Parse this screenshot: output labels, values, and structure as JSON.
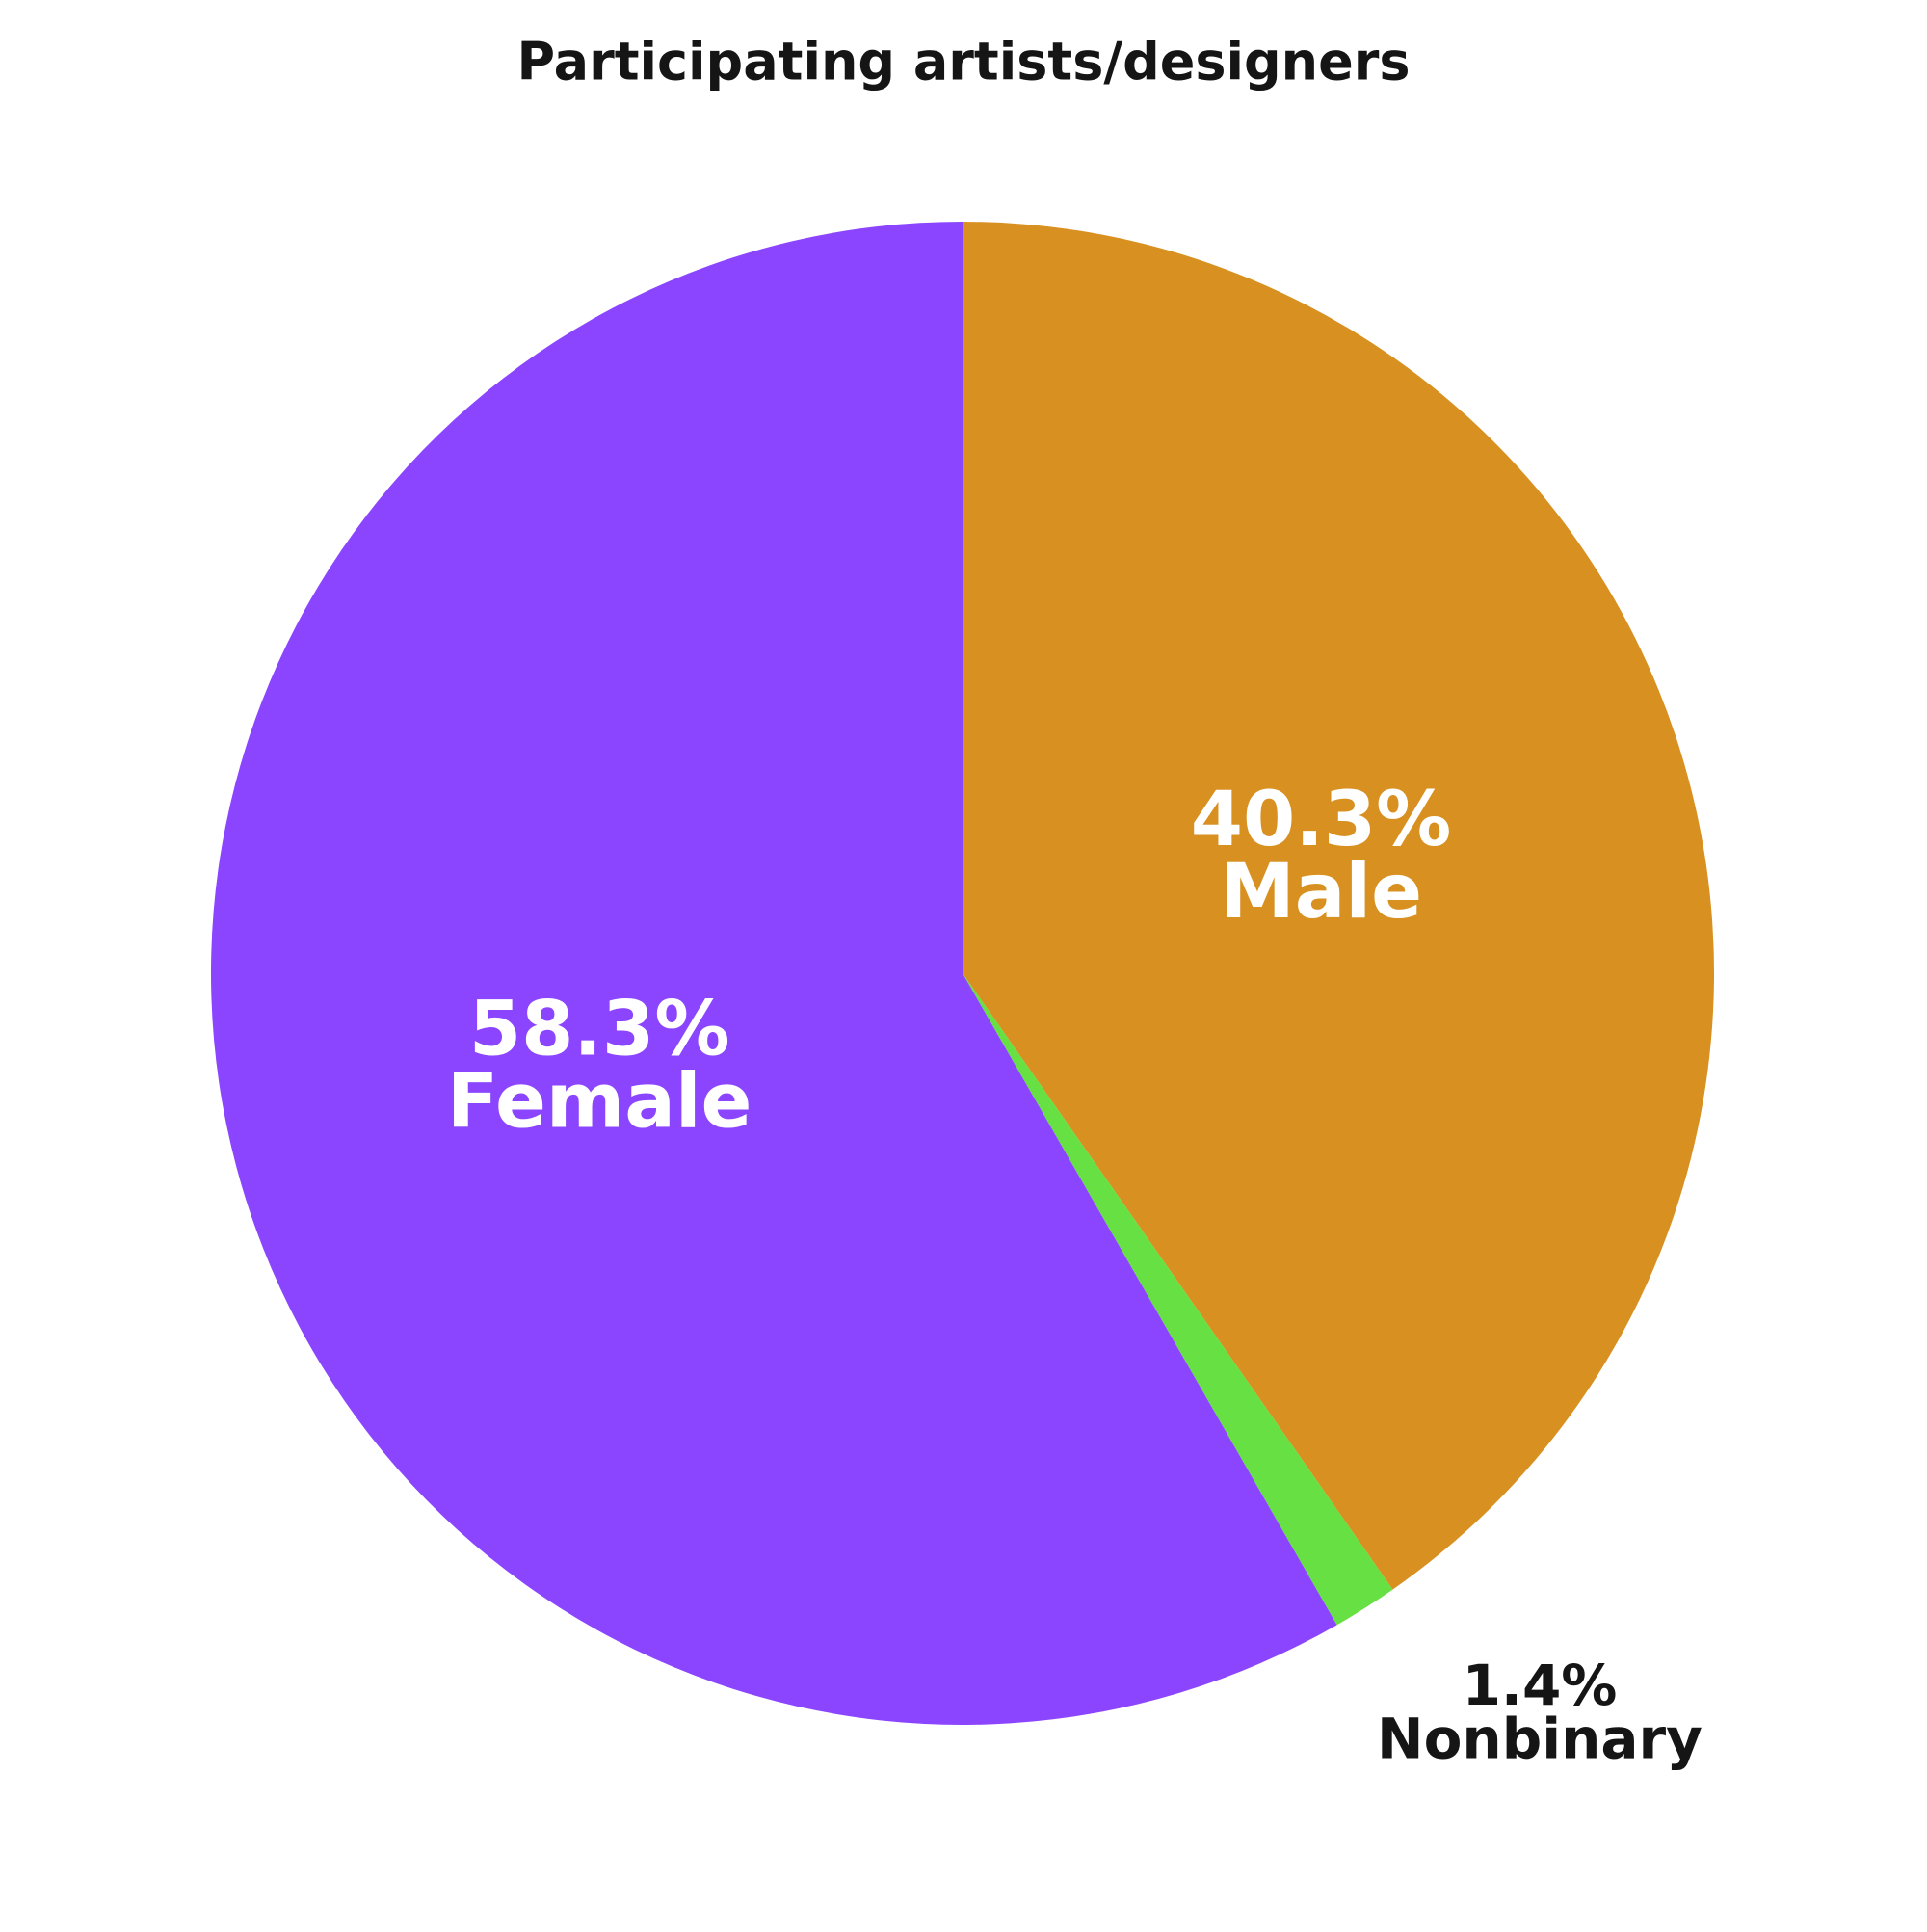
{
  "chart_data": {
    "type": "pie",
    "title": "Participating artists/designers",
    "categories": [
      "Male",
      "Nonbinary",
      "Female"
    ],
    "values": [
      40.3,
      1.4,
      58.3
    ],
    "value_labels": [
      "40.3%",
      "1.4%",
      "58.3%"
    ],
    "colors": [
      "#d89020",
      "#66e042",
      "#8c45ff"
    ],
    "label_colors": [
      "#ffffff",
      "#151515",
      "#ffffff"
    ]
  }
}
